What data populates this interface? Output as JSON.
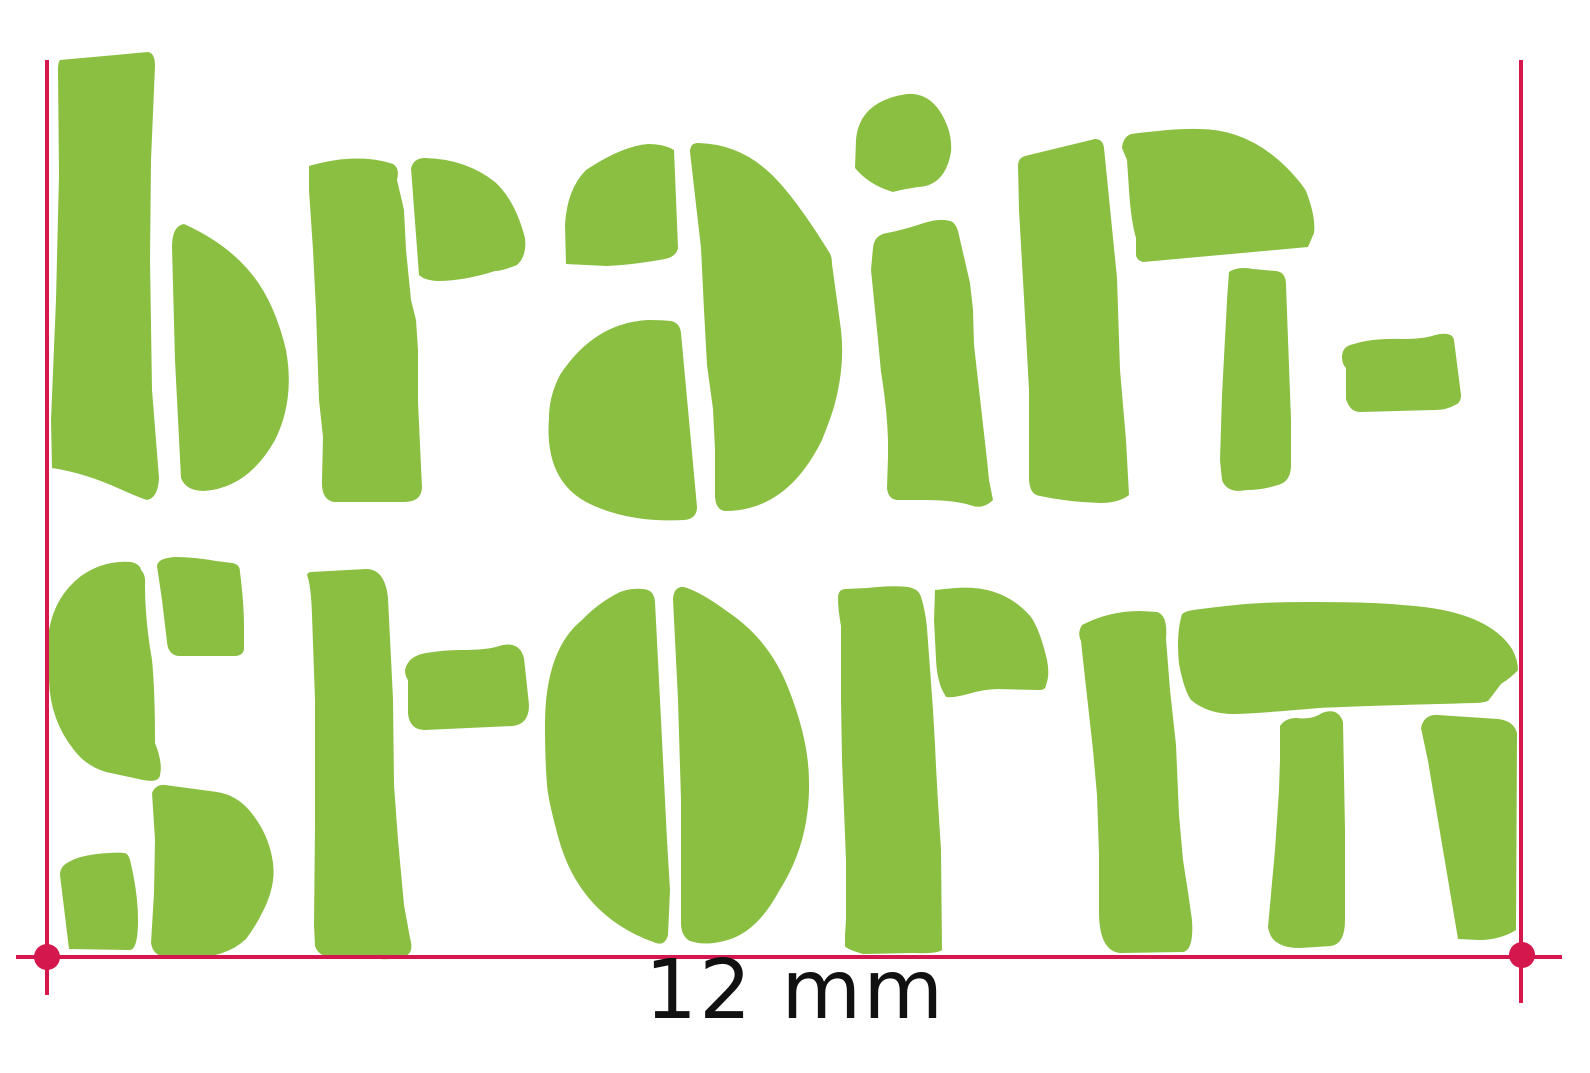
{
  "colors": {
    "glyph_green": "#8abf41",
    "dimension_red": "#d4174d",
    "label_text": "#111111"
  },
  "dimension": {
    "label": "12 mm"
  }
}
